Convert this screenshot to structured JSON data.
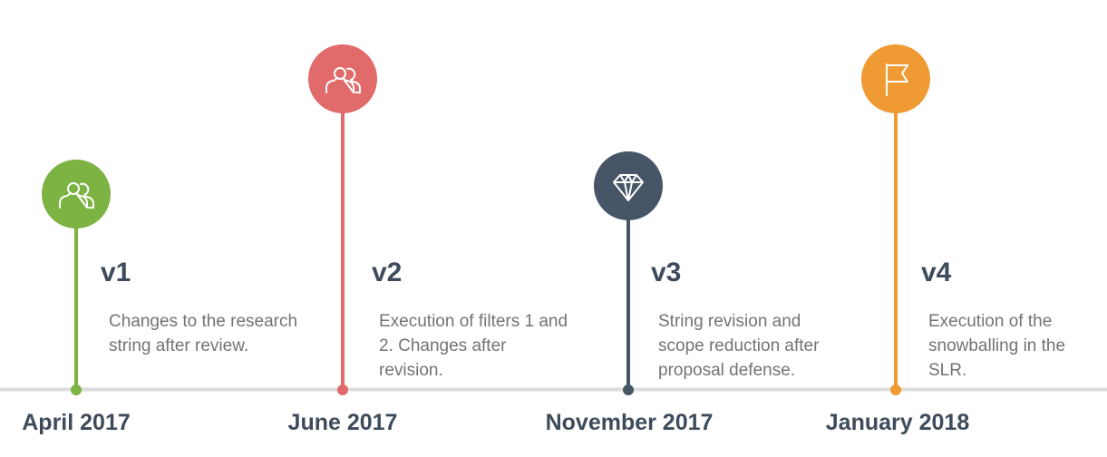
{
  "colors": {
    "baseline": "#dcdcdc",
    "heading": "#3e4b5b",
    "text": "#737373"
  },
  "milestones": [
    {
      "version": "v1",
      "description": "Changes to the research string after review.",
      "date": "April 2017",
      "color": "#7cb342",
      "icon": "users-icon"
    },
    {
      "version": "v2",
      "description": "Execution of filters 1 and 2. Changes after revision.",
      "date": "June 2017",
      "color": "#e16a6a",
      "icon": "users-icon"
    },
    {
      "version": "v3",
      "description": "String revision and scope reduction after proposal defense.",
      "date": "November 2017",
      "color": "#475667",
      "icon": "diamond-icon"
    },
    {
      "version": "v4",
      "description": "Execution of the snowballing in the SLR.",
      "date": "January 2018",
      "color": "#ef9a33",
      "icon": "flag-icon"
    }
  ]
}
